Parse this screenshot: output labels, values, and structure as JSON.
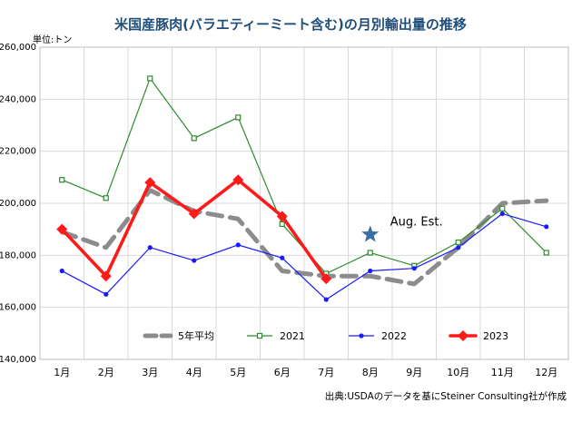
{
  "chart_data": {
    "type": "line",
    "title": "米国産豚肉(バラエティーミート含む)の月別輸出量の推移",
    "unit_label": "単位:トン",
    "source": "出典:USDAのデータを基にSteiner Consulting社が作成",
    "categories": [
      "1月",
      "2月",
      "3月",
      "4月",
      "5月",
      "6月",
      "7月",
      "8月",
      "9月",
      "10月",
      "11月",
      "12月"
    ],
    "ylim": [
      140000,
      260000
    ],
    "yticks": [
      140000,
      160000,
      180000,
      200000,
      220000,
      240000,
      260000
    ],
    "ytick_labels": [
      "140,000",
      "160,000",
      "180,000",
      "200,000",
      "220,000",
      "240,000",
      "260,000"
    ],
    "grid": true,
    "legend_position": "bottom",
    "series": [
      {
        "name": "5年平均",
        "color": "#8c8c8c",
        "style": "dashed",
        "values": [
          189000,
          183000,
          205000,
          197000,
          194000,
          174000,
          172000,
          172000,
          169000,
          183000,
          200000,
          201000
        ]
      },
      {
        "name": "2021",
        "color": "#2e8b2e",
        "style": "square-open",
        "values": [
          209000,
          202000,
          248000,
          225000,
          233000,
          192000,
          173000,
          181000,
          176000,
          185000,
          198000,
          181000
        ]
      },
      {
        "name": "2022",
        "color": "#1a1aff",
        "style": "dot",
        "values": [
          174000,
          165000,
          183000,
          178000,
          184000,
          179000,
          163000,
          174000,
          175000,
          183000,
          196000,
          191000
        ]
      },
      {
        "name": "2023",
        "color": "#ff1a1a",
        "style": "diamond-bold",
        "values": [
          190000,
          172000,
          208000,
          196000,
          209000,
          195000,
          171000,
          null,
          null,
          null,
          null,
          null
        ]
      }
    ],
    "annotations": [
      {
        "label": "Aug. Est.",
        "category": "8月",
        "value": 188000,
        "marker": "star",
        "color": "#3a6ea5"
      }
    ]
  }
}
